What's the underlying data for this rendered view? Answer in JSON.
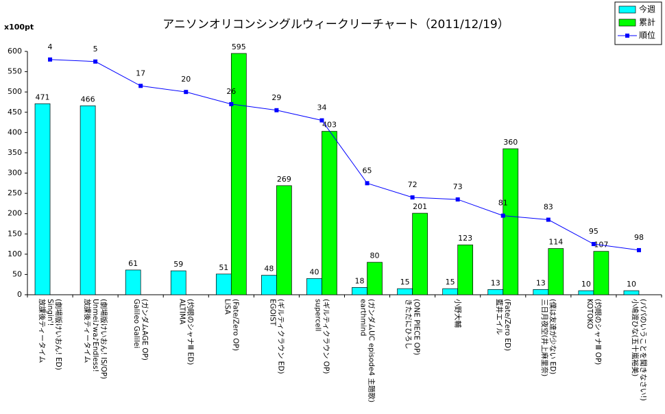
{
  "chart_data": {
    "type": "bar-line",
    "title": "アニソンオリコンシングルウィークリーチャート（2011/12/19）",
    "y_label": "x100pt",
    "categories": [
      "放課後ティータイム\nSingin'!\n(劇場版けいおん! ED)",
      "放課後ティータイム\nUnmei♪wa♪Endless!\n(劇場版けいおん! IS/OP)",
      "Galileo Galilei\n(ガンダムAGE OP)",
      "ALTIMA\n(灼眼のシャナⅢ ED)",
      "LiSA\n(Fate/Zero OP)",
      "EGOIST\n(ギルティクラウン ED)",
      "supercell\n(ギルティクラウン OP)",
      "earthmind\n(ガンダムUC episode4 主題歌)",
      "きただにひろし\n(ONE PIECE OP)",
      "小野大輔",
      "藍井エイル\n(Fate/Zero ED)",
      "三日月夜空(井上麻里奈)\n(僕は友達が少ない ED)",
      "KOTOKO\n(灼眼のシャナⅢ OP)",
      "小鳩渡ひな(五十嵐裕美)\n(パパのいうことを聞きなさい!)"
    ],
    "series": [
      {
        "name": "今週",
        "color": "#00ffff",
        "kind": "bar",
        "values": [
          471,
          466,
          61,
          59,
          51,
          48,
          40,
          18,
          15,
          15,
          13,
          13,
          10,
          10
        ]
      },
      {
        "name": "累計",
        "color": "#00ff00",
        "kind": "bar",
        "values": [
          null,
          null,
          null,
          null,
          595,
          269,
          403,
          80,
          201,
          123,
          360,
          114,
          107,
          null
        ]
      },
      {
        "name": "順位",
        "color": "#0000ff",
        "kind": "line",
        "axis": "y2",
        "values": [
          4,
          5,
          17,
          20,
          26,
          29,
          34,
          65,
          72,
          73,
          81,
          83,
          95,
          98
        ]
      }
    ],
    "ylim": [
      0,
      600
    ],
    "yticks": [
      0,
      50,
      100,
      150,
      200,
      250,
      300,
      350,
      400,
      450,
      500,
      550,
      600
    ],
    "y2lim": [
      120,
      0
    ],
    "grid": false,
    "legend": "top-right"
  }
}
